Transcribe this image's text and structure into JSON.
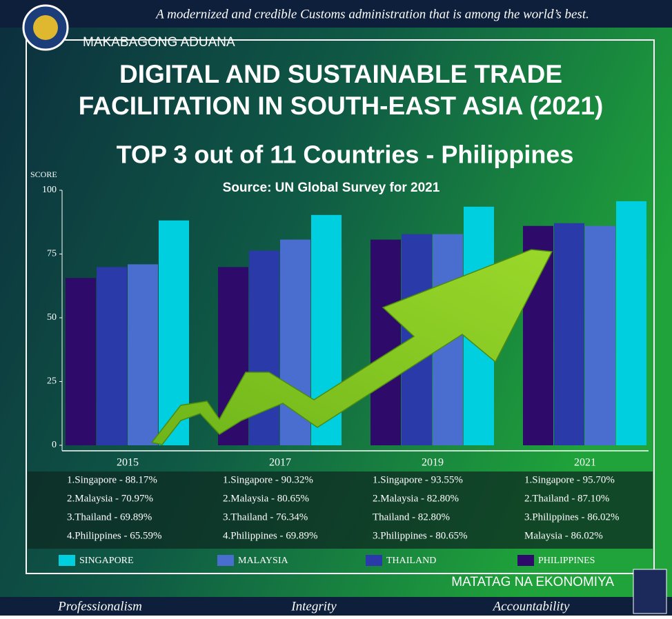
{
  "header": {
    "motto": "A modernized and credible Customs administration that is among the world’s best.",
    "brand": "MAKABAGONG ADUANA"
  },
  "title_lines": [
    "DIGITAL AND SUSTAINABLE TRADE",
    "FACILITATION IN SOUTH-EAST ASIA (2021)"
  ],
  "headline": "TOP 3 out of 11 Countries - Philippines",
  "chart_data": {
    "type": "bar",
    "subtitle": "Source: UN Global Survey for 2021",
    "y_label": "SCORE",
    "categories": [
      "2015",
      "2017",
      "2019",
      "2021"
    ],
    "series": [
      {
        "name": "SINGAPORE",
        "color": "#00cfe0",
        "values": [
          88.17,
          90.32,
          93.55,
          95.7
        ]
      },
      {
        "name": "MALAYSIA",
        "color": "#4a6ed0",
        "values": [
          70.97,
          80.65,
          82.8,
          86.02
        ]
      },
      {
        "name": "THAILAND",
        "color": "#2a3aa8",
        "values": [
          69.89,
          76.34,
          82.8,
          87.1
        ]
      },
      {
        "name": "PHILIPPINES",
        "color": "#2e0a6a",
        "values": [
          65.59,
          69.89,
          80.65,
          86.02
        ]
      }
    ],
    "ylim": [
      0,
      100
    ],
    "yticks": [
      0,
      25,
      50,
      75,
      100
    ],
    "grid": false
  },
  "rankings": [
    [
      "1.Singapore - 88.17%",
      "2.Malaysia - 70.97%",
      "3.Thailand - 69.89%",
      "4.Philippines - 65.59%"
    ],
    [
      "1.Singapore - 90.32%",
      "2.Malaysia - 80.65%",
      "3.Thailand - 76.34%",
      "4.Philippines - 69.89%"
    ],
    [
      "1.Singapore - 93.55%",
      "2.Malaysia - 82.80%",
      "Thailand - 82.80%",
      "3.Philippines - 80.65%"
    ],
    [
      "1.Singapore - 95.70%",
      "2.Thailand - 87.10%",
      "3.Philippines - 86.02%",
      "Malaysia - 86.02%"
    ]
  ],
  "footer": {
    "slogan": "MATATAG NA EKONOMIYA",
    "values": [
      "Professionalism",
      "Integrity",
      "Accountability"
    ]
  }
}
